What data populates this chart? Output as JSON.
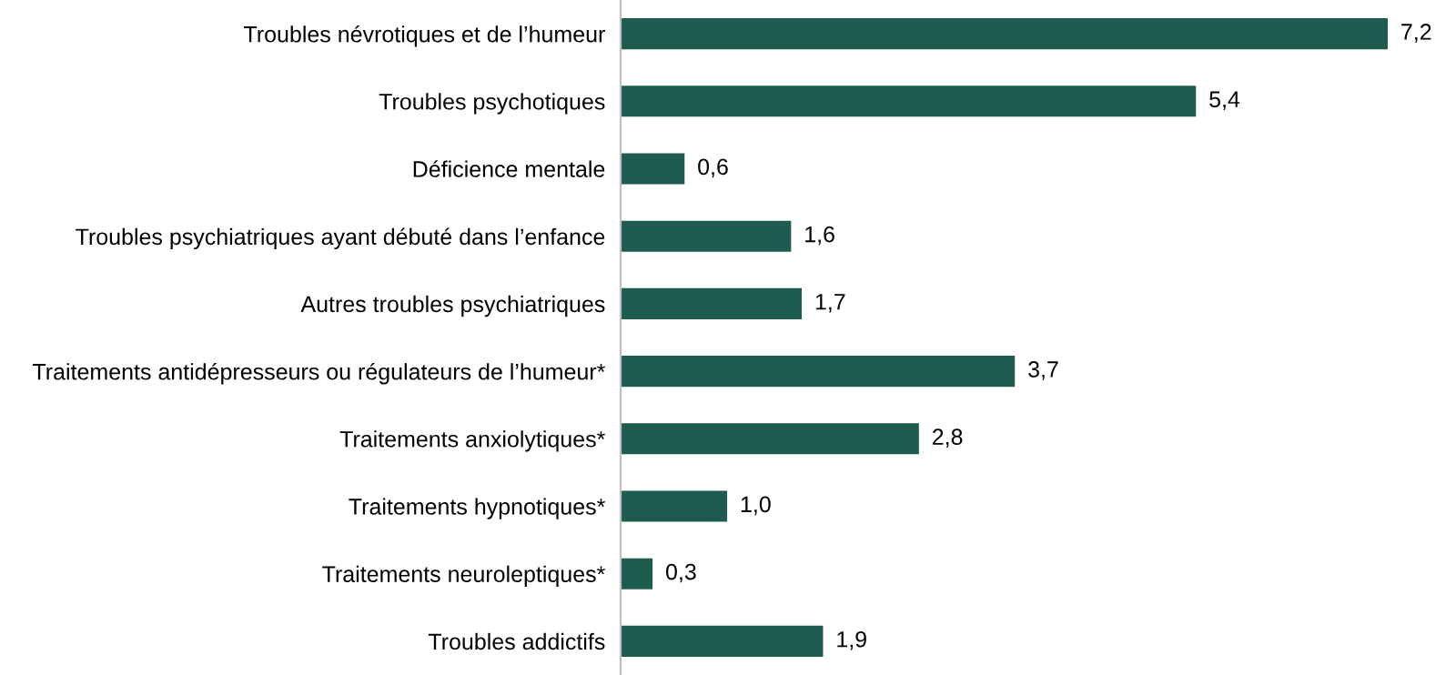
{
  "chart_data": {
    "type": "bar",
    "orientation": "horizontal",
    "categories": [
      "Troubles névrotiques et de l’humeur",
      "Troubles psychotiques",
      "Déficience mentale",
      "Troubles psychiatriques ayant débuté dans l’enfance",
      "Autres troubles psychiatriques",
      "Traitements antidépresseurs ou régulateurs de l’humeur*",
      "Traitements anxiolytiques*",
      "Traitements hypnotiques*",
      "Traitements neuroleptiques*",
      "Troubles addictifs"
    ],
    "values": [
      7.2,
      5.4,
      0.6,
      1.6,
      1.7,
      3.7,
      2.8,
      1.0,
      0.3,
      1.9
    ],
    "value_labels": [
      "7,2",
      "5,4",
      "0,6",
      "1,6",
      "1,7",
      "3,7",
      "2,8",
      "1,0",
      "0,3",
      "1,9"
    ],
    "color": "#1f5c50",
    "tick_labels": "y",
    "grid": false,
    "legend": false
  }
}
